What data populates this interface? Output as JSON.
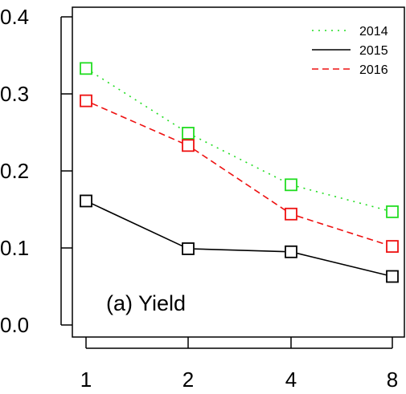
{
  "chart_data": {
    "type": "line",
    "categories": [
      "1",
      "2",
      "4",
      "8"
    ],
    "yticks": [
      "0.0",
      "0.1",
      "0.2",
      "0.3",
      "0.4"
    ],
    "ylim": [
      0,
      0.42
    ],
    "grid": false,
    "legend_position": "top-right",
    "annotation": "(a) Yield",
    "series": [
      {
        "name": "2014",
        "values": [
          0.333,
          0.249,
          0.182,
          0.147
        ],
        "color": "#22dd22",
        "style": "dotted"
      },
      {
        "name": "2015",
        "values": [
          0.161,
          0.099,
          0.095,
          0.063
        ],
        "color": "#000000",
        "style": "solid"
      },
      {
        "name": "2016",
        "values": [
          0.291,
          0.233,
          0.144,
          0.102
        ],
        "color": "#ee1111",
        "style": "dashed"
      }
    ]
  }
}
